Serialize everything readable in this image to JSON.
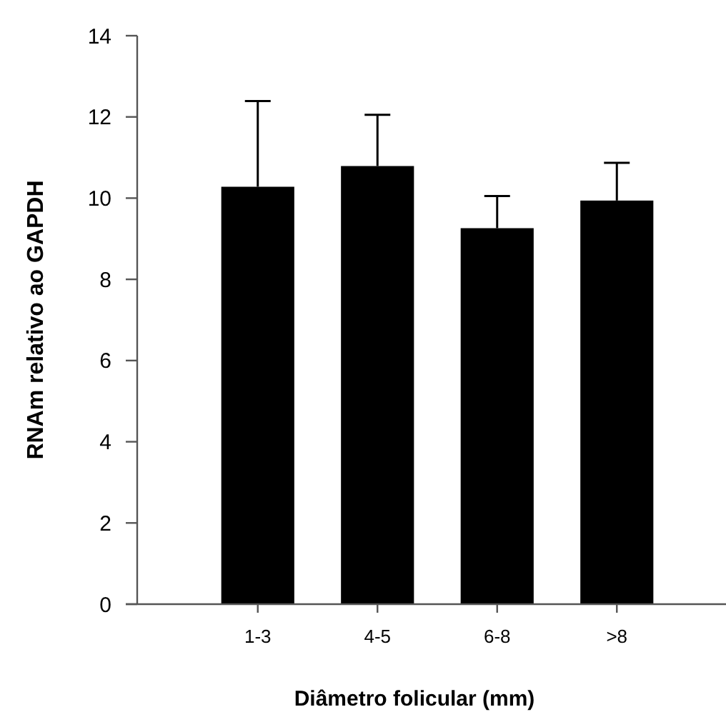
{
  "chart_data": {
    "type": "bar",
    "xlabel": "Diâmetro folicular (mm)",
    "ylabel": "RNAm relativo ao GAPDH",
    "categories": [
      "1-3",
      "4-5",
      "6-8",
      ">8"
    ],
    "values": [
      10.28,
      10.79,
      9.26,
      9.94
    ],
    "errors": [
      [
        10.28,
        12.39
      ],
      [
        10.79,
        12.05
      ],
      [
        9.26,
        10.05
      ],
      [
        9.94,
        10.87
      ]
    ],
    "color": "#000000",
    "ylim": [
      0,
      14
    ],
    "yticks": [
      0,
      2,
      4,
      6,
      8,
      10,
      12,
      14
    ],
    "grid": false
  }
}
